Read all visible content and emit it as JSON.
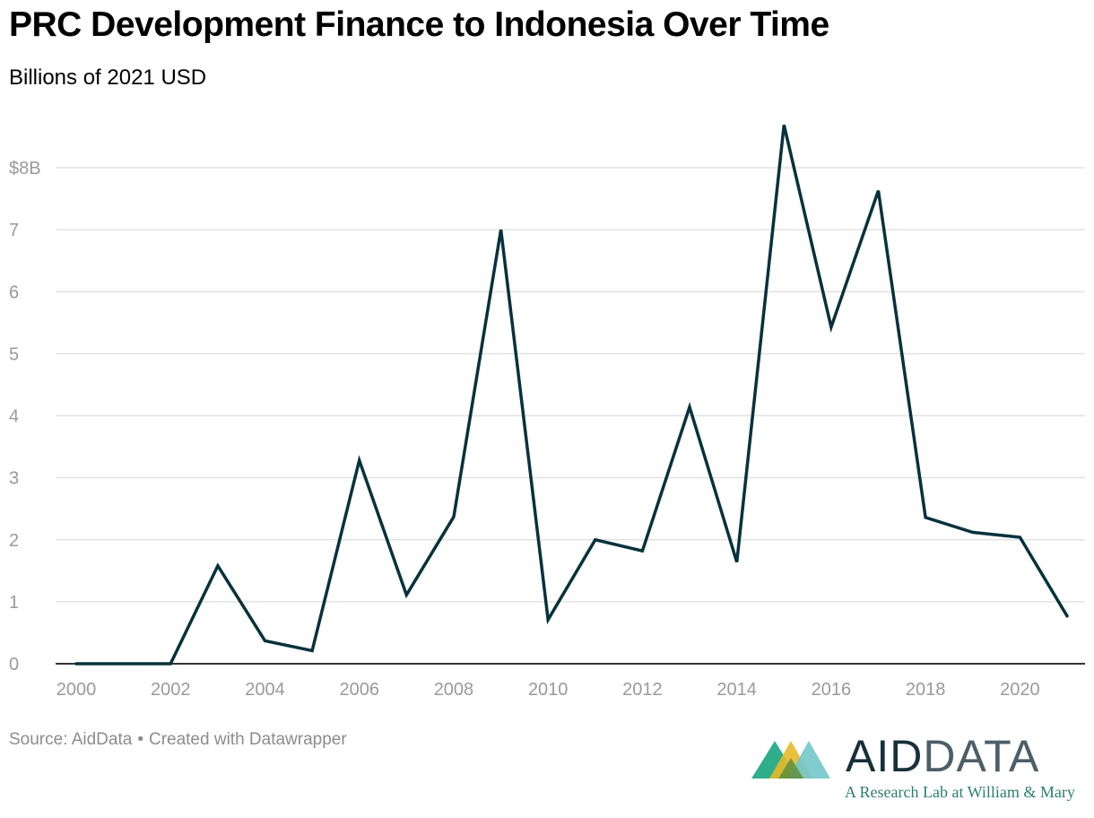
{
  "title": "PRC Development Finance to Indonesia Over Time",
  "subtitle": "Billions of 2021 USD",
  "footer": {
    "source": "Source: AidData",
    "separator": "•",
    "credit": "Created with Datawrapper"
  },
  "logo": {
    "word_part1": "AID",
    "word_part2": "DATA",
    "tagline": "A Research Lab at William & Mary",
    "colors": [
      "#2fae8b",
      "#e8b92a",
      "#72c6c9",
      "#5d8f3c"
    ]
  },
  "chart_data": {
    "type": "line",
    "x": [
      2000,
      2001,
      2002,
      2003,
      2004,
      2005,
      2006,
      2007,
      2008,
      2009,
      2010,
      2011,
      2012,
      2013,
      2014,
      2015,
      2016,
      2017,
      2018,
      2019,
      2020,
      2021
    ],
    "series": [
      {
        "values": [
          0,
          0,
          0,
          1.58,
          0.37,
          0.21,
          3.28,
          1.11,
          2.37,
          7.0,
          0.71,
          2.0,
          1.82,
          4.14,
          1.64,
          8.69,
          5.43,
          7.63,
          2.36,
          2.12,
          2.04,
          0.77
        ],
        "color": "#07323d"
      }
    ],
    "ylim": [
      0,
      8.7
    ],
    "yticks": [
      0,
      1,
      2,
      3,
      4,
      5,
      6,
      7,
      8
    ],
    "ytick_labels": [
      "0",
      "1",
      "2",
      "3",
      "4",
      "5",
      "6",
      "7",
      "$8B"
    ],
    "xticks": [
      2000,
      2002,
      2004,
      2006,
      2008,
      2010,
      2012,
      2014,
      2016,
      2018,
      2020
    ],
    "xtick_labels": [
      "2000",
      "2002",
      "2004",
      "2006",
      "2008",
      "2010",
      "2012",
      "2014",
      "2016",
      "2018",
      "2020"
    ],
    "grid": true,
    "legend": "none",
    "xlabel": "",
    "ylabel": ""
  }
}
